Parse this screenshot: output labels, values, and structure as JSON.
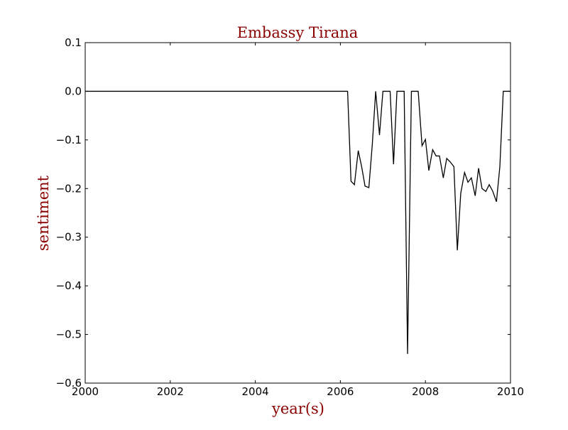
{
  "chart_data": {
    "type": "line",
    "title": "Embassy Tirana",
    "xlabel": "year(s)",
    "ylabel": "sentiment",
    "xlim": [
      2000,
      2010
    ],
    "ylim": [
      -0.6,
      0.1
    ],
    "x_ticks": [
      {
        "value": 2000,
        "label": "2000"
      },
      {
        "value": 2002,
        "label": "2002"
      },
      {
        "value": 2004,
        "label": "2004"
      },
      {
        "value": 2006,
        "label": "2006"
      },
      {
        "value": 2008,
        "label": "2008"
      },
      {
        "value": 2010,
        "label": "2010"
      }
    ],
    "y_ticks": [
      {
        "value": 0.1,
        "label": "0.1"
      },
      {
        "value": 0.0,
        "label": "0.0"
      },
      {
        "value": -0.1,
        "label": "−0.1"
      },
      {
        "value": -0.2,
        "label": "−0.2"
      },
      {
        "value": -0.3,
        "label": "−0.3"
      },
      {
        "value": -0.4,
        "label": "−0.4"
      },
      {
        "value": -0.5,
        "label": "−0.5"
      },
      {
        "value": -0.6,
        "label": "−0.6"
      }
    ],
    "grid": false,
    "line_color": "#000000",
    "title_color": "#8b0000",
    "series": [
      {
        "x": [
          2000.0,
          2006.17,
          2006.25,
          2006.33,
          2006.42,
          2006.5,
          2006.58,
          2006.67,
          2006.75,
          2006.83,
          2006.92,
          2007.0,
          2007.08,
          2007.17,
          2007.25,
          2007.33,
          2007.42,
          2007.5,
          2007.58,
          2007.67,
          2007.75,
          2007.83,
          2007.92,
          2008.0,
          2008.08,
          2008.17,
          2008.25,
          2008.33,
          2008.42,
          2008.5,
          2008.58,
          2008.67,
          2008.75,
          2008.83,
          2008.92,
          2009.0,
          2009.08,
          2009.17,
          2009.25,
          2009.33,
          2009.42,
          2009.5,
          2009.58,
          2009.67,
          2009.75,
          2009.83,
          2009.92,
          2010.0
        ],
        "y": [
          0.0,
          0.0,
          -0.185,
          -0.192,
          -0.122,
          -0.155,
          -0.195,
          -0.198,
          -0.11,
          0.0,
          -0.09,
          0.0,
          0.0,
          0.0,
          -0.15,
          0.0,
          0.0,
          0.0,
          -0.54,
          0.0,
          0.0,
          0.0,
          -0.112,
          -0.099,
          -0.163,
          -0.12,
          -0.133,
          -0.133,
          -0.178,
          -0.138,
          -0.145,
          -0.155,
          -0.327,
          -0.21,
          -0.167,
          -0.187,
          -0.178,
          -0.215,
          -0.158,
          -0.2,
          -0.206,
          -0.192,
          -0.205,
          -0.227,
          -0.155,
          0.0,
          0.0,
          0.0
        ]
      }
    ]
  }
}
